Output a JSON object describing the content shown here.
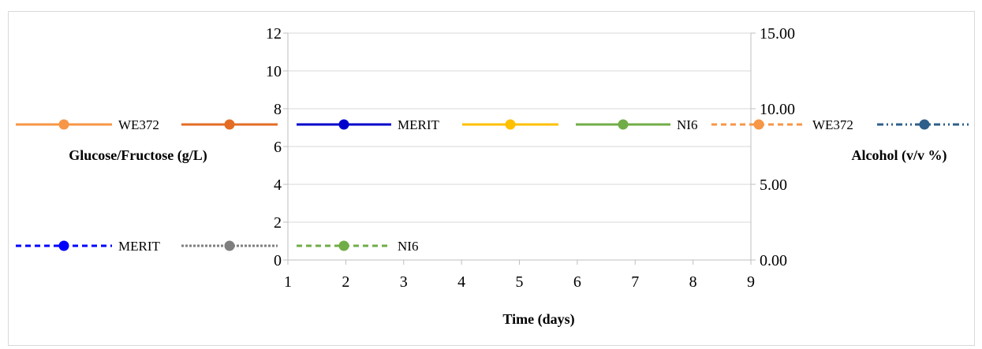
{
  "chart_data": {
    "type": "line",
    "title": "",
    "xlabel": "Time (days)",
    "ylabel": "Glucose/Fructose (g/L)",
    "y2label": "Alcohol (v/v %)",
    "x_ticks": [
      "1",
      "2",
      "3",
      "4",
      "5",
      "6",
      "7",
      "8",
      "9"
    ],
    "xlim": [
      1,
      9
    ],
    "y_ticks": [
      "0",
      "2",
      "4",
      "6",
      "8",
      "10",
      "12"
    ],
    "ylim": [
      0,
      12
    ],
    "y2_ticks": [
      "0.00",
      "5.00",
      "10.00",
      "15.00"
    ],
    "y2lim": [
      0,
      15
    ],
    "grid": true,
    "legend_position": "overlaid",
    "series": [
      {
        "name": "WE372",
        "axis": "left",
        "color": "#f79646",
        "style": "solid",
        "values": []
      },
      {
        "name": "",
        "axis": "left",
        "color": "#e46c25",
        "style": "solid",
        "values": []
      },
      {
        "name": "MERIT",
        "axis": "left",
        "color": "#0000cc",
        "style": "solid",
        "values": []
      },
      {
        "name": "",
        "axis": "left",
        "color": "#ffc000",
        "style": "solid",
        "values": []
      },
      {
        "name": "NI6",
        "axis": "left",
        "color": "#70ad47",
        "style": "solid",
        "values": []
      },
      {
        "name": "WE372",
        "axis": "right",
        "color": "#f79646",
        "style": "dashed",
        "values": []
      },
      {
        "name": "",
        "axis": "right",
        "color": "#2e5f8a",
        "style": "dashdot",
        "values": []
      },
      {
        "name": "MERIT",
        "axis": "right",
        "color": "#0000ff",
        "style": "dashed",
        "values": []
      },
      {
        "name": "",
        "axis": "right",
        "color": "#7f7f7f",
        "style": "dotted",
        "values": []
      },
      {
        "name": "NI6",
        "axis": "right",
        "color": "#70ad47",
        "style": "dashed",
        "values": []
      }
    ]
  }
}
